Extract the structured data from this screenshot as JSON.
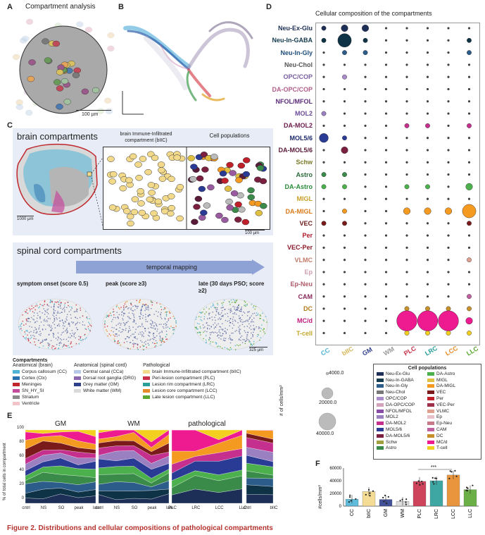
{
  "panel_labels": {
    "a": "A",
    "b": "B",
    "c": "C",
    "d": "D",
    "e": "E",
    "f": "F"
  },
  "panel_a": {
    "title": "Compartment analysis",
    "scalebar": "100 µm"
  },
  "panel_c": {
    "brain_title": "brain compartments",
    "biic_title": "brain Immune-Infiltrated compartment (bIIC)",
    "cellpop_title": "Cell populations",
    "scale_1000": "1000 µm",
    "scale_100": "100 µm",
    "spinal_title": "spinal cord compartments",
    "temporal": "temporal mapping",
    "stage1": "symptom onset (score 0.5)",
    "stage2": "peak (score ≥3)",
    "stage3": "late (30 days PSO; score ≥2)",
    "scale_325": "325 µm"
  },
  "compartments_legend": {
    "title": "Compartments",
    "groups": [
      {
        "heading": "Anatomical (brain)",
        "items": [
          {
            "label": "Corpus callosum (CC)",
            "color": "#4fb3d6"
          },
          {
            "label": "Cortex (Ctx)",
            "color": "#2a6fb0"
          },
          {
            "label": "Meninges",
            "color": "#c0262c"
          },
          {
            "label": "SN_HY_SI",
            "color": "#c44a9c"
          },
          {
            "label": "Striatum",
            "color": "#8a8a8a"
          },
          {
            "label": "Ventricle",
            "color": "#f2c3c8"
          }
        ]
      },
      {
        "heading": "Anatomical (spinal cord)",
        "items": [
          {
            "label": "Central canal (CCa)",
            "color": "#b7c7e8"
          },
          {
            "label": "Dorsal root ganglia (DRG)",
            "color": "#8c68b0"
          },
          {
            "label": "Grey matter (GM)",
            "color": "#2e3f8c"
          },
          {
            "label": "White matter (WM)",
            "color": "#d9d9d9"
          }
        ]
      },
      {
        "heading": "Pathological",
        "items": [
          {
            "label": "brain Immune-Infiltrated compartment (bIIC)",
            "color": "#f3d98a"
          },
          {
            "label": "Peri-lesion compartment (PLC)",
            "color": "#c8304a"
          },
          {
            "label": "Lesion rim compartment (LRC)",
            "color": "#2a9e9a"
          },
          {
            "label": "Lesion core compartment (LCC)",
            "color": "#e78a2a"
          },
          {
            "label": "Late lesion compartment (LLC)",
            "color": "#5aa832"
          }
        ]
      }
    ]
  },
  "panel_d": {
    "title": "Cellular composition of the compartments",
    "rows": [
      {
        "label": "Neu-Ex-Glu",
        "color": "#1d2f57",
        "sizes": [
          2,
          3,
          3,
          1,
          1,
          1,
          1,
          1
        ],
        "fill": "#1d2f57"
      },
      {
        "label": "Neu-In-GABA",
        "color": "#143a4e",
        "sizes": [
          2,
          6,
          2,
          1,
          1,
          1,
          1,
          2
        ],
        "fill": "#0e3346"
      },
      {
        "label": "Neu-In-Gly",
        "color": "#1f4d7a",
        "sizes": [
          1,
          2,
          2,
          1,
          1,
          1,
          1,
          2
        ],
        "fill": "#2b5c8a"
      },
      {
        "label": "Neu-Chol",
        "color": "#555555",
        "sizes": [
          1,
          1,
          1,
          1,
          1,
          1,
          1,
          1
        ],
        "fill": "#777777"
      },
      {
        "label": "OPC/COP",
        "color": "#7a5fa0",
        "sizes": [
          1,
          2,
          1,
          1,
          1,
          1,
          1,
          1
        ],
        "fill": "#a98bc9"
      },
      {
        "label": "DA-OPC/COP",
        "color": "#b05f8a",
        "sizes": [
          1,
          1,
          1,
          1,
          1,
          1,
          1,
          1
        ],
        "fill": "#d3a3bd"
      },
      {
        "label": "NFOL/MFOL",
        "color": "#5a2a7a",
        "sizes": [
          1,
          1,
          1,
          1,
          1,
          1,
          1,
          1
        ],
        "fill": "#8a4aa8"
      },
      {
        "label": "MOL2",
        "color": "#6a4a9a",
        "sizes": [
          2,
          1,
          1,
          1,
          1,
          1,
          1,
          1
        ],
        "fill": "#9a80c0"
      },
      {
        "label": "DA-MOL2",
        "color": "#6a1a4a",
        "sizes": [
          1,
          1,
          1,
          1,
          2,
          2,
          1,
          2
        ],
        "fill": "#c52f8d"
      },
      {
        "label": "MOL5/6",
        "color": "#1e2a6a",
        "sizes": [
          4,
          2,
          1,
          1,
          1,
          1,
          1,
          1
        ],
        "fill": "#2a3b95"
      },
      {
        "label": "DA-MOL5/6",
        "color": "#5a1a3a",
        "sizes": [
          1,
          3,
          1,
          1,
          1,
          1,
          1,
          1
        ],
        "fill": "#7a1f40"
      },
      {
        "label": "Schw",
        "color": "#7a7a2a",
        "sizes": [
          1,
          1,
          1,
          1,
          1,
          1,
          1,
          1
        ],
        "fill": "#a0a040"
      },
      {
        "label": "Astro",
        "color": "#2a6a3a",
        "sizes": [
          2,
          2,
          1,
          1,
          1,
          1,
          1,
          1
        ],
        "fill": "#3a8a4a"
      },
      {
        "label": "DA-Astro",
        "color": "#2a8a3a",
        "sizes": [
          2,
          2,
          1,
          1,
          2,
          2,
          1,
          3
        ],
        "fill": "#4cb04c"
      },
      {
        "label": "MIGL",
        "color": "#c8a02a",
        "sizes": [
          1,
          1,
          1,
          1,
          1,
          1,
          1,
          1
        ],
        "fill": "#e0c040"
      },
      {
        "label": "DA-MIGL",
        "color": "#d97a1a",
        "sizes": [
          1,
          2,
          1,
          1,
          3,
          3,
          3,
          6
        ],
        "fill": "#f59a20"
      },
      {
        "label": "VEC",
        "color": "#6a1a1a",
        "sizes": [
          2,
          2,
          1,
          1,
          1,
          1,
          1,
          2
        ],
        "fill": "#7a1a1a"
      },
      {
        "label": "Per",
        "color": "#b01a2a",
        "sizes": [
          1,
          1,
          1,
          1,
          1,
          1,
          1,
          1
        ],
        "fill": "#c0202a"
      },
      {
        "label": "VEC-Per",
        "color": "#8a1a2a",
        "sizes": [
          1,
          1,
          1,
          1,
          1,
          1,
          1,
          1
        ],
        "fill": "#a0304a"
      },
      {
        "label": "VLMC",
        "color": "#c47a6a",
        "sizes": [
          1,
          1,
          1,
          1,
          1,
          1,
          1,
          2
        ],
        "fill": "#e0a090"
      },
      {
        "label": "Ep",
        "color": "#d0a0b0",
        "sizes": [
          1,
          1,
          1,
          1,
          1,
          1,
          1,
          1
        ],
        "fill": "#e8c0c8"
      },
      {
        "label": "Ep-Neu",
        "color": "#b05a6a",
        "sizes": [
          1,
          1,
          1,
          1,
          1,
          1,
          1,
          1
        ],
        "fill": "#c87a8a"
      },
      {
        "label": "CAM",
        "color": "#8a2a5a",
        "sizes": [
          1,
          1,
          1,
          1,
          1,
          1,
          1,
          2
        ],
        "fill": "#c060a0"
      },
      {
        "label": "DC",
        "color": "#b07a1a",
        "sizes": [
          1,
          1,
          1,
          1,
          2,
          2,
          2,
          2
        ],
        "fill": "#c8902a"
      },
      {
        "label": "MC/d",
        "color": "#c01a7a",
        "sizes": [
          1,
          1,
          1,
          1,
          9,
          9,
          9,
          3
        ],
        "fill": "#ee1a90"
      },
      {
        "label": "T-cell",
        "color": "#c8a82a",
        "sizes": [
          1,
          1,
          1,
          1,
          2,
          2,
          2,
          2
        ],
        "fill": "#f3d020"
      }
    ],
    "columns": [
      {
        "label": "CC",
        "color": "#4fb3d6"
      },
      {
        "label": "bIIC",
        "color": "#d8b65a"
      },
      {
        "label": "GM",
        "color": "#2e3f8c"
      },
      {
        "label": "WM",
        "color": "#9a9a9a"
      },
      {
        "label": "PLC",
        "color": "#c8304a"
      },
      {
        "label": "LRC",
        "color": "#2a9e9a"
      },
      {
        "label": "LCC",
        "color": "#e78a2a"
      },
      {
        "label": "LLC",
        "color": "#5aa832"
      }
    ],
    "size_legend": {
      "values": [
        "4000.0",
        "20000.0",
        "40000.0"
      ],
      "axis_label": "# of cells/mm²"
    },
    "cellpop_legend": {
      "title": "Cell populations",
      "items": [
        {
          "label": "Neu-Ex-Glu",
          "color": "#1d2f57"
        },
        {
          "label": "Neu-In-GABA",
          "color": "#143a4e"
        },
        {
          "label": "Neu-In-Gly",
          "color": "#2b5c8a"
        },
        {
          "label": "Neu-Chol",
          "color": "#777777"
        },
        {
          "label": "OPC/COP",
          "color": "#a98bc9"
        },
        {
          "label": "DA-OPC/COP",
          "color": "#d3a3bd"
        },
        {
          "label": "NFOL/MFOL",
          "color": "#8a4aa8"
        },
        {
          "label": "MOL2",
          "color": "#9a80c0"
        },
        {
          "label": "DA-MOL2",
          "color": "#c52f8d"
        },
        {
          "label": "MOL5/6",
          "color": "#2a3b95"
        },
        {
          "label": "DA-MOL5/6",
          "color": "#7a1f40"
        },
        {
          "label": "Schw",
          "color": "#a0a040"
        },
        {
          "label": "Astro",
          "color": "#3a8a4a"
        },
        {
          "label": "DA-Astro",
          "color": "#4cb04c"
        },
        {
          "label": "MIGL",
          "color": "#e0c040"
        },
        {
          "label": "DA-MIGL",
          "color": "#f59a20"
        },
        {
          "label": "VEC",
          "color": "#7a1a1a"
        },
        {
          "label": "Per",
          "color": "#c0202a"
        },
        {
          "label": "VEC-Per",
          "color": "#a0304a"
        },
        {
          "label": "VLMC",
          "color": "#e0a090"
        },
        {
          "label": "Ep",
          "color": "#e8c0c8"
        },
        {
          "label": "Ep-Neu",
          "color": "#c87a8a"
        },
        {
          "label": "CAM",
          "color": "#c060a0"
        },
        {
          "label": "DC",
          "color": "#c8902a"
        },
        {
          "label": "MC/d",
          "color": "#ee1a90"
        },
        {
          "label": "T-cell",
          "color": "#f3d020"
        }
      ]
    }
  },
  "panel_e": {
    "ylabel": "% of total cells in compartment",
    "groups": [
      {
        "title": "GM",
        "ticks": [
          "cntrl",
          "NS",
          "SO",
          "peak",
          "late"
        ]
      },
      {
        "title": "WM",
        "ticks": [
          "cntrl",
          "NS",
          "SO",
          "peak",
          "late"
        ]
      },
      {
        "title": "pathological",
        "ticks": [
          "PLC",
          "LRC",
          "LCC",
          "LLC"
        ]
      },
      {
        "title": "",
        "ticks": [
          "cntrl",
          "bIIC"
        ]
      }
    ],
    "yticks": [
      "0",
      "20",
      "40",
      "60",
      "80",
      "100"
    ]
  },
  "chart_data": {
    "type": "bar",
    "categories": [
      "CC",
      "bIIC",
      "GM",
      "WM",
      "PLC",
      "LRC",
      "LCC",
      "LLC"
    ],
    "values": [
      11000,
      23000,
      10500,
      7500,
      39000,
      40000,
      49000,
      26000
    ],
    "colors": [
      "#4fb3d6",
      "#f3d98a",
      "#2e3f8c",
      "#d9d9d9",
      "#c8304a",
      "#2a9e9a",
      "#e78a2a",
      "#5aa832"
    ],
    "ylabel": "#cells/mm²",
    "ylim": [
      0,
      60000
    ],
    "yticks": [
      "0",
      "20000",
      "40000",
      "60000"
    ],
    "annotation": "***"
  },
  "caption": "Figure 2. Distributions and cellular compositions of pathological compartments"
}
